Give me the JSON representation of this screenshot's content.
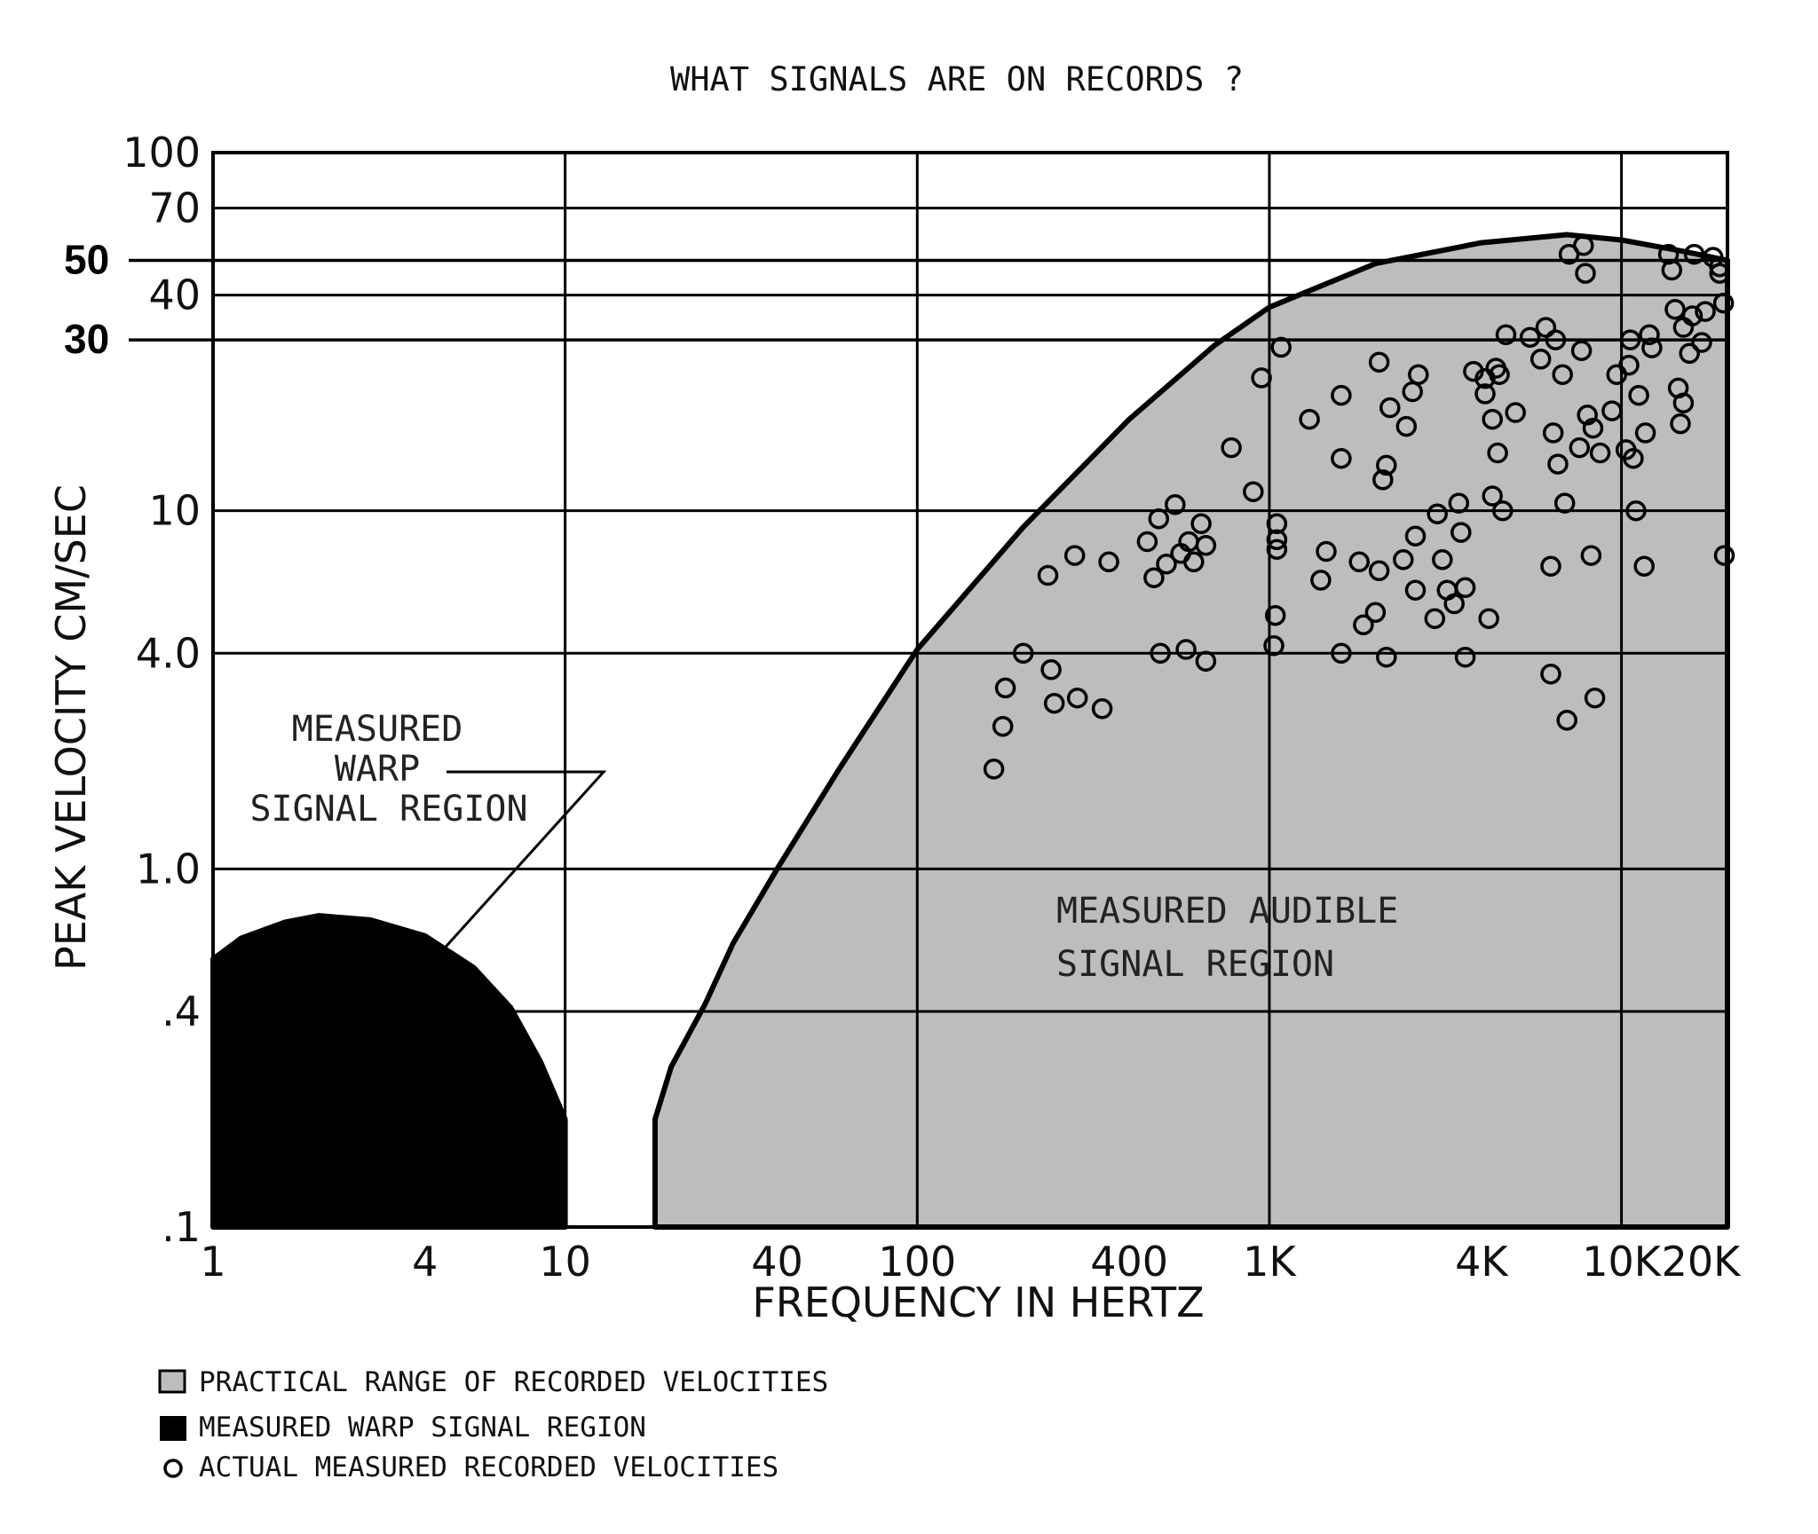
{
  "colors": {
    "background": "#ffffff",
    "audible_region": "#bdbdbd",
    "warp_region": "#000000",
    "grid": "#000000",
    "marker": "#000000"
  },
  "chart_data": {
    "type": "scatter",
    "title": "WHAT SIGNALS ARE ON RECORDS ?",
    "xlabel": "FREQUENCY IN HERTZ",
    "ylabel": "PEAK VELOCITY CM/SEC",
    "x_scale": "log",
    "y_scale": "log",
    "xlim": [
      1,
      20000
    ],
    "ylim": [
      0.1,
      100
    ],
    "grid": true,
    "x_gridlines": [
      10,
      100,
      1000,
      10000
    ],
    "y_gridlines": [
      0.4,
      1,
      4,
      10,
      40,
      70,
      100
    ],
    "highlight_lines": [
      {
        "y": 50,
        "label": "50"
      },
      {
        "y": 30,
        "label": "30"
      }
    ],
    "x_ticks": [
      {
        "value": 1,
        "label": "1"
      },
      {
        "value": 4,
        "label": "4"
      },
      {
        "value": 10,
        "label": "10"
      },
      {
        "value": 40,
        "label": "40"
      },
      {
        "value": 100,
        "label": "100"
      },
      {
        "value": 400,
        "label": "400"
      },
      {
        "value": 1000,
        "label": "1K"
      },
      {
        "value": 4000,
        "label": "4K"
      },
      {
        "value": 10000,
        "label": "10K"
      },
      {
        "value": 20000,
        "label": "20K"
      }
    ],
    "y_ticks": [
      {
        "value": 0.1,
        "label": ".1"
      },
      {
        "value": 0.4,
        "label": ".4"
      },
      {
        "value": 1,
        "label": "1.0"
      },
      {
        "value": 4,
        "label": "4.0"
      },
      {
        "value": 10,
        "label": "10"
      },
      {
        "value": 40,
        "label": "40"
      },
      {
        "value": 70,
        "label": "70"
      },
      {
        "value": 100,
        "label": "100"
      }
    ],
    "regions": [
      {
        "name": "MEASURED WARP SIGNAL REGION",
        "fill": "#000000",
        "boundary": [
          [
            1,
            0.1
          ],
          [
            1,
            0.56
          ],
          [
            1.2,
            0.64
          ],
          [
            1.6,
            0.71
          ],
          [
            2,
            0.74
          ],
          [
            2.8,
            0.72
          ],
          [
            4,
            0.65
          ],
          [
            5.5,
            0.53
          ],
          [
            7,
            0.41
          ],
          [
            8.5,
            0.29
          ],
          [
            10,
            0.2
          ],
          [
            10,
            0.1
          ]
        ]
      },
      {
        "name": "MEASURED AUDIBLE SIGNAL REGION",
        "fill": "#bdbdbd",
        "boundary": [
          [
            18,
            0.1
          ],
          [
            18,
            0.2
          ],
          [
            20,
            0.28
          ],
          [
            25,
            0.42
          ],
          [
            30,
            0.62
          ],
          [
            40,
            1
          ],
          [
            60,
            1.9
          ],
          [
            100,
            4.1
          ],
          [
            200,
            9
          ],
          [
            400,
            18
          ],
          [
            700,
            29
          ],
          [
            1000,
            37
          ],
          [
            2000,
            49
          ],
          [
            4000,
            56
          ],
          [
            7000,
            59
          ],
          [
            10000,
            57
          ],
          [
            15000,
            53
          ],
          [
            20000,
            50
          ],
          [
            20000,
            0.1
          ]
        ]
      }
    ],
    "annotations": [
      {
        "text_lines": [
          "MEASURED",
          "WARP",
          "SIGNAL REGION"
        ],
        "arrow_to": [
          6,
          0.6
        ]
      },
      {
        "text_lines": [
          "MEASURED AUDIBLE",
          "SIGNAL REGION"
        ]
      }
    ],
    "legend": {
      "placement": "bottom-left",
      "items": [
        {
          "symbol": "gray-box",
          "label": "PRACTICAL RANGE OF RECORDED VELOCITIES"
        },
        {
          "symbol": "black-box",
          "label": "MEASURED WARP SIGNAL REGION"
        },
        {
          "symbol": "circle",
          "label": "ACTUAL MEASURED RECORDED VELOCITIES"
        }
      ]
    },
    "series": [
      {
        "name": "ACTUAL MEASURED RECORDED VELOCITIES",
        "points": [
          [
            165,
            1.9
          ],
          [
            175,
            2.5
          ],
          [
            178,
            3.2
          ],
          [
            200,
            4.0
          ],
          [
            240,
            3.6
          ],
          [
            245,
            2.9
          ],
          [
            285,
            3.0
          ],
          [
            335,
            2.8
          ],
          [
            235,
            6.6
          ],
          [
            280,
            7.5
          ],
          [
            350,
            7.2
          ],
          [
            450,
            8.2
          ],
          [
            470,
            6.5
          ],
          [
            485,
            9.5
          ],
          [
            490,
            4.0
          ],
          [
            510,
            7.1
          ],
          [
            540,
            10.4
          ],
          [
            560,
            7.6
          ],
          [
            580,
            4.1
          ],
          [
            590,
            8.2
          ],
          [
            610,
            7.2
          ],
          [
            640,
            9.2
          ],
          [
            660,
            3.8
          ],
          [
            660,
            8.0
          ],
          [
            780,
            15.0
          ],
          [
            900,
            11.3
          ],
          [
            950,
            23.5
          ],
          [
            1030,
            4.2
          ],
          [
            1040,
            5.1
          ],
          [
            1050,
            7.8
          ],
          [
            1050,
            8.3
          ],
          [
            1050,
            9.2
          ],
          [
            1080,
            28.6
          ],
          [
            1300,
            18.0
          ],
          [
            1400,
            6.4
          ],
          [
            1450,
            7.7
          ],
          [
            1600,
            14.0
          ],
          [
            1600,
            4.0
          ],
          [
            1600,
            21.0
          ],
          [
            1800,
            7.2
          ],
          [
            1850,
            4.8
          ],
          [
            2000,
            5.2
          ],
          [
            2050,
            6.8
          ],
          [
            2050,
            26.0
          ],
          [
            2100,
            12.2
          ],
          [
            2150,
            13.4
          ],
          [
            2150,
            3.9
          ],
          [
            2200,
            19.4
          ],
          [
            2400,
            7.3
          ],
          [
            2450,
            17.2
          ],
          [
            2550,
            21.5
          ],
          [
            2600,
            8.5
          ],
          [
            2600,
            6.0
          ],
          [
            2650,
            24.0
          ],
          [
            2950,
            5.0
          ],
          [
            3000,
            9.8
          ],
          [
            3100,
            7.3
          ],
          [
            3200,
            6.0
          ],
          [
            3350,
            5.5
          ],
          [
            3450,
            10.5
          ],
          [
            3500,
            8.7
          ],
          [
            3600,
            3.9
          ],
          [
            3600,
            6.1
          ],
          [
            3800,
            24.5
          ],
          [
            4100,
            21.2
          ],
          [
            4100,
            23.4
          ],
          [
            4200,
            5.0
          ],
          [
            4300,
            18.0
          ],
          [
            4300,
            11.0
          ],
          [
            4400,
            25.0
          ],
          [
            4450,
            14.5
          ],
          [
            4500,
            24.0
          ],
          [
            4600,
            10.0
          ],
          [
            4700,
            31.0
          ],
          [
            5000,
            18.8
          ],
          [
            5500,
            30.5
          ],
          [
            5900,
            26.5
          ],
          [
            6100,
            32.5
          ],
          [
            6300,
            7.0
          ],
          [
            6300,
            3.5
          ],
          [
            6400,
            16.5
          ],
          [
            6500,
            30.0
          ],
          [
            6600,
            13.5
          ],
          [
            6800,
            24.0
          ],
          [
            6900,
            10.5
          ],
          [
            7000,
            2.6
          ],
          [
            7100,
            52.0
          ],
          [
            7600,
            15.0
          ],
          [
            7700,
            28.0
          ],
          [
            7800,
            55.0
          ],
          [
            7900,
            46.0
          ],
          [
            8000,
            18.5
          ],
          [
            8200,
            7.5
          ],
          [
            8300,
            17.0
          ],
          [
            8400,
            3.0
          ],
          [
            8700,
            14.5
          ],
          [
            9400,
            19.0
          ],
          [
            9700,
            24.0
          ],
          [
            10300,
            14.8
          ],
          [
            10500,
            25.5
          ],
          [
            10600,
            30.0
          ],
          [
            10800,
            14.0
          ],
          [
            11000,
            10.0
          ],
          [
            11200,
            21.0
          ],
          [
            11600,
            7.0
          ],
          [
            11700,
            16.5
          ],
          [
            12000,
            31.0
          ],
          [
            12200,
            28.5
          ],
          [
            13600,
            52.0
          ],
          [
            13900,
            47.0
          ],
          [
            14200,
            36.5
          ],
          [
            14500,
            22.0
          ],
          [
            14700,
            17.5
          ],
          [
            15000,
            20.0
          ],
          [
            15000,
            32.5
          ],
          [
            15600,
            27.5
          ],
          [
            15900,
            35.0
          ],
          [
            16100,
            52.0
          ],
          [
            16900,
            29.5
          ],
          [
            17300,
            36.0
          ],
          [
            18200,
            51.0
          ],
          [
            19000,
            46.0
          ],
          [
            19000,
            48.0
          ],
          [
            19500,
            38.0
          ],
          [
            19600,
            7.5
          ]
        ]
      }
    ]
  }
}
